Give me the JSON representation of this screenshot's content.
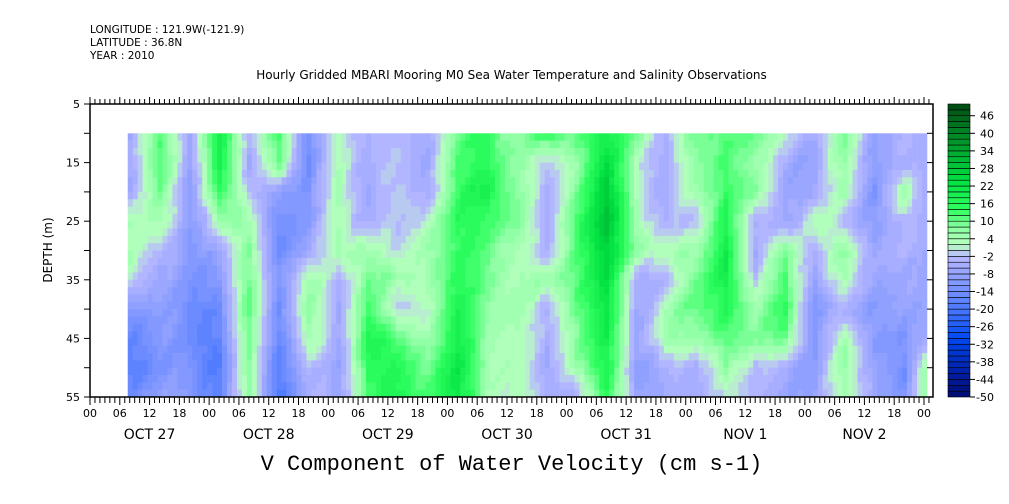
{
  "header": {
    "longitude": "LONGITUDE : 121.9W(-121.9)",
    "latitude": "LATITUDE : 36.8N",
    "year": "YEAR : 2010"
  },
  "chart_data": {
    "type": "heatmap",
    "title": "Hourly Gridded MBARI Mooring M0 Sea Water Temperature and Salinity Observations",
    "xlabel": "V Component of Water Velocity (cm s-1)",
    "ylabel": "DEPTH (m)",
    "ylim": [
      5,
      55
    ],
    "y_inverted": true,
    "yticks": [
      "5",
      "15",
      "25",
      "35",
      "45",
      "55"
    ],
    "xlim_hours_from_oct27_00": [
      0,
      169.8
    ],
    "xtick_hour_labels": [
      "00",
      "06",
      "12",
      "18",
      "00",
      "06",
      "12",
      "18",
      "00",
      "06",
      "12",
      "18",
      "00",
      "06",
      "12",
      "18",
      "00",
      "06",
      "12",
      "18",
      "00",
      "06",
      "12",
      "18",
      "00",
      "06",
      "12",
      "18",
      "00"
    ],
    "day_labels": [
      "OCT 27",
      "OCT 28",
      "OCT 29",
      "OCT 30",
      "OCT 31",
      "NOV  1",
      "NOV  2"
    ],
    "data_start_hour": 7.6,
    "time_hours": [
      8,
      14,
      20,
      26,
      32,
      38,
      44,
      50,
      56,
      62,
      68,
      74,
      80,
      86,
      92,
      98,
      104,
      110,
      116,
      122,
      128,
      134,
      140,
      146,
      152,
      158,
      164,
      168
    ],
    "depths": [
      10,
      15,
      20,
      25,
      30,
      35,
      40,
      45,
      50,
      55
    ],
    "values_by_time": [
      [
        -4,
        -4,
        -4,
        6,
        6,
        3,
        -10,
        -14,
        -16,
        -12
      ],
      [
        10,
        12,
        8,
        4,
        -4,
        -8,
        -10,
        -12,
        -14,
        -10
      ],
      [
        -6,
        -8,
        -10,
        -10,
        -10,
        -12,
        -14,
        -14,
        -12,
        -10
      ],
      [
        22,
        20,
        16,
        6,
        -6,
        -10,
        -14,
        -16,
        -18,
        -16
      ],
      [
        -6,
        -8,
        -4,
        4,
        6,
        8,
        10,
        8,
        6,
        6
      ],
      [
        16,
        12,
        -6,
        -12,
        -12,
        -10,
        -12,
        -14,
        -16,
        -18
      ],
      [
        -16,
        -16,
        -14,
        -12,
        -8,
        4,
        6,
        4,
        -4,
        -6
      ],
      [
        4,
        4,
        6,
        4,
        6,
        -4,
        -6,
        -6,
        -8,
        -6
      ],
      [
        -4,
        -4,
        -6,
        -4,
        6,
        10,
        14,
        18,
        16,
        12
      ],
      [
        -4,
        -4,
        -2,
        -4,
        -2,
        4,
        -4,
        10,
        14,
        16
      ],
      [
        -4,
        -4,
        -4,
        4,
        8,
        6,
        4,
        6,
        12,
        14
      ],
      [
        8,
        10,
        12,
        14,
        12,
        14,
        16,
        18,
        20,
        20
      ],
      [
        16,
        16,
        20,
        14,
        12,
        10,
        8,
        6,
        6,
        4
      ],
      [
        6,
        8,
        8,
        10,
        4,
        4,
        6,
        4,
        4,
        4
      ],
      [
        14,
        -4,
        -6,
        -8,
        -6,
        4,
        -6,
        -6,
        -8,
        -6
      ],
      [
        12,
        8,
        10,
        16,
        14,
        14,
        12,
        10,
        8,
        -4
      ],
      [
        18,
        22,
        26,
        28,
        24,
        22,
        20,
        18,
        16,
        14
      ],
      [
        10,
        4,
        4,
        6,
        8,
        -4,
        -6,
        -6,
        -8,
        -6
      ],
      [
        -4,
        -6,
        -6,
        -4,
        4,
        -4,
        4,
        6,
        -4,
        -6
      ],
      [
        8,
        6,
        4,
        -4,
        4,
        8,
        10,
        4,
        -6,
        -8
      ],
      [
        14,
        14,
        16,
        20,
        22,
        22,
        18,
        14,
        8,
        4
      ],
      [
        8,
        4,
        6,
        -6,
        -8,
        -4,
        4,
        6,
        -4,
        -6
      ],
      [
        4,
        -4,
        -6,
        -6,
        10,
        14,
        16,
        12,
        -4,
        -6
      ],
      [
        -6,
        -8,
        -6,
        4,
        -4,
        -8,
        -12,
        -12,
        -10,
        -8
      ],
      [
        8,
        6,
        4,
        -4,
        6,
        4,
        -6,
        4,
        6,
        4
      ],
      [
        -6,
        -8,
        -10,
        -8,
        -4,
        -6,
        -8,
        -8,
        -6,
        -4
      ],
      [
        -6,
        -6,
        4,
        -4,
        -6,
        -8,
        -10,
        -14,
        -16,
        -14
      ],
      [
        -6,
        -6,
        -6,
        -6,
        -6,
        -8,
        -8,
        -6,
        4,
        4
      ]
    ],
    "colorbar": {
      "min": -50,
      "max": 50,
      "step": 2,
      "labels": [
        "46",
        "40",
        "34",
        "28",
        "22",
        "16",
        "10",
        "4",
        "-2",
        "-8",
        "-14",
        "-20",
        "-26",
        "-32",
        "-38",
        "-44",
        "-50"
      ],
      "color_stops": [
        {
          "v": -50,
          "c": "#000a6e"
        },
        {
          "v": -40,
          "c": "#0024b0"
        },
        {
          "v": -30,
          "c": "#0048f0"
        },
        {
          "v": -20,
          "c": "#4a78ff"
        },
        {
          "v": -12,
          "c": "#7e96ff"
        },
        {
          "v": -2,
          "c": "#b8b8ff"
        },
        {
          "v": 2,
          "c": "#b8ffc0"
        },
        {
          "v": 8,
          "c": "#88ffa0"
        },
        {
          "v": 14,
          "c": "#30ff60"
        },
        {
          "v": 24,
          "c": "#00e040"
        },
        {
          "v": 34,
          "c": "#00a830"
        },
        {
          "v": 50,
          "c": "#004a14"
        }
      ]
    }
  }
}
